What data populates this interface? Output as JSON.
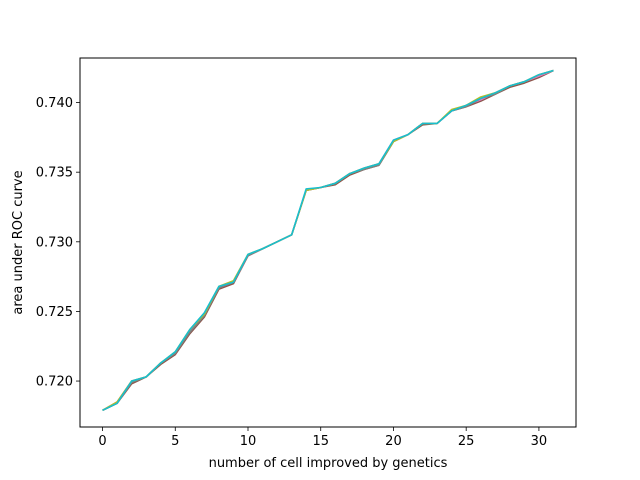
{
  "chart_data": {
    "type": "line",
    "title": "",
    "xlabel": "number of cell improved by genetics",
    "ylabel": "area under ROC curve",
    "xlim": [
      -1.55,
      32.55
    ],
    "ylim": [
      0.7167,
      0.7432
    ],
    "xticks": [
      0,
      5,
      10,
      15,
      20,
      25,
      30
    ],
    "xtick_labels": [
      "0",
      "5",
      "10",
      "15",
      "20",
      "25",
      "30"
    ],
    "yticks": [
      0.72,
      0.725,
      0.73,
      0.735,
      0.74
    ],
    "ytick_labels": [
      "0.720",
      "0.725",
      "0.730",
      "0.735",
      "0.740"
    ],
    "grid": false,
    "legend": "none",
    "x": [
      0,
      1,
      2,
      3,
      4,
      5,
      6,
      7,
      8,
      9,
      10,
      11,
      12,
      13,
      14,
      15,
      16,
      17,
      18,
      19,
      20,
      21,
      22,
      23,
      24,
      25,
      26,
      27,
      28,
      29,
      30,
      31
    ],
    "series": [
      {
        "color": "#8c564b",
        "values": [
          0.7179,
          0.7184,
          0.7198,
          0.7203,
          0.7212,
          0.7219,
          0.7234,
          0.7246,
          0.7266,
          0.727,
          0.729,
          0.7295,
          0.73,
          0.7305,
          0.7337,
          0.7339,
          0.7341,
          0.7348,
          0.7352,
          0.7355,
          0.7372,
          0.7377,
          0.7384,
          0.7385,
          0.7394,
          0.7397,
          0.7401,
          0.7406,
          0.7411,
          0.7414,
          0.7418,
          0.7423
        ]
      },
      {
        "color": "#e377c2",
        "values": [
          0.7179,
          0.7185,
          0.72,
          0.7203,
          0.7213,
          0.722,
          0.7236,
          0.7248,
          0.7267,
          0.7271,
          0.729,
          0.7295,
          0.73,
          0.7305,
          0.7337,
          0.7339,
          0.7342,
          0.7349,
          0.7353,
          0.7356,
          0.7373,
          0.7377,
          0.7385,
          0.7385,
          0.7394,
          0.7398,
          0.7402,
          0.7407,
          0.7412,
          0.7415,
          0.7419,
          0.7423
        ]
      },
      {
        "color": "#7f7f7f",
        "values": [
          0.7179,
          0.7184,
          0.7199,
          0.7203,
          0.7213,
          0.722,
          0.7235,
          0.7247,
          0.7267,
          0.7271,
          0.729,
          0.7295,
          0.73,
          0.7305,
          0.7337,
          0.7339,
          0.7342,
          0.7349,
          0.7352,
          0.7355,
          0.7372,
          0.7377,
          0.7385,
          0.7385,
          0.7394,
          0.7397,
          0.7403,
          0.7406,
          0.7412,
          0.7415,
          0.742,
          0.7423
        ]
      },
      {
        "color": "#bcbd22",
        "values": [
          0.7179,
          0.7185,
          0.72,
          0.7203,
          0.7213,
          0.7221,
          0.7237,
          0.7248,
          0.7268,
          0.7272,
          0.7291,
          0.7295,
          0.73,
          0.7305,
          0.7337,
          0.7339,
          0.7342,
          0.7349,
          0.7353,
          0.7356,
          0.7372,
          0.7377,
          0.7385,
          0.7385,
          0.7395,
          0.7398,
          0.7404,
          0.7407,
          0.7412,
          0.7415,
          0.742,
          0.7423
        ]
      },
      {
        "color": "#17becf",
        "values": [
          0.7179,
          0.7184,
          0.72,
          0.7203,
          0.7213,
          0.7221,
          0.7237,
          0.7249,
          0.7268,
          0.7271,
          0.7291,
          0.7295,
          0.73,
          0.7305,
          0.7338,
          0.7339,
          0.7342,
          0.7349,
          0.7353,
          0.7356,
          0.7373,
          0.7377,
          0.7385,
          0.7385,
          0.7394,
          0.7398,
          0.7403,
          0.7407,
          0.7412,
          0.7415,
          0.742,
          0.7423
        ]
      }
    ]
  }
}
